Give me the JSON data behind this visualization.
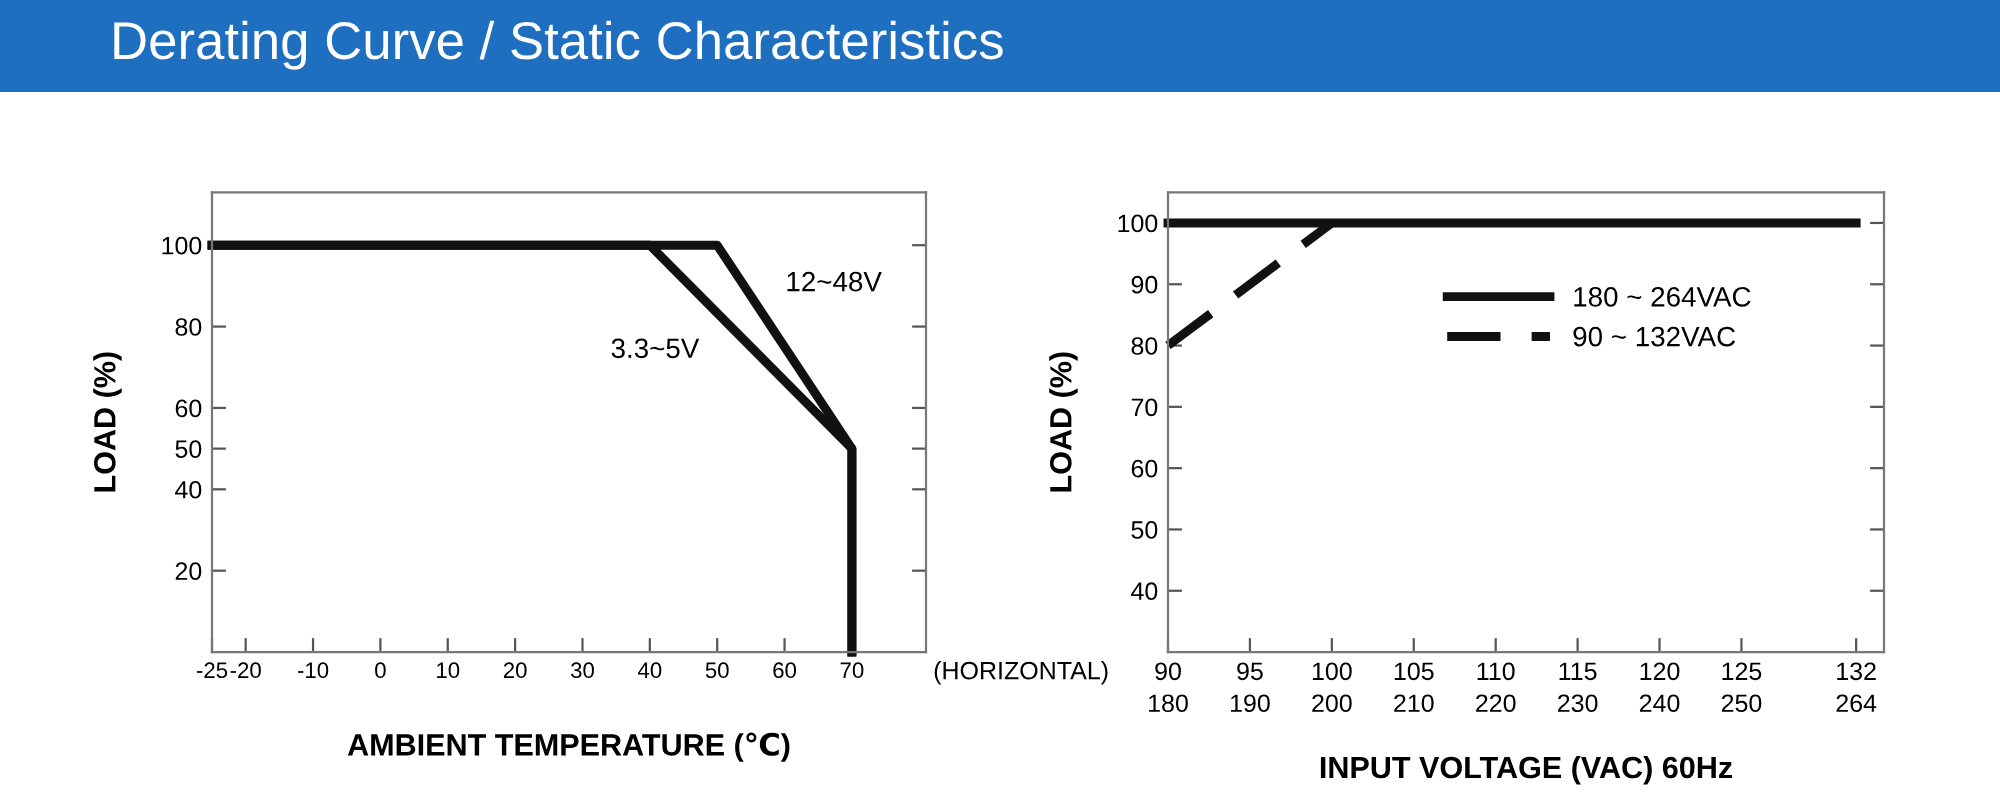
{
  "chart_data": [
    {
      "type": "line",
      "title": "Derating Curve / Static Characteristics",
      "xlabel": "AMBIENT TEMPERATURE (℃)",
      "ylabel": "LOAD (%)",
      "annotations": [
        "(HORIZONTAL)"
      ],
      "series": [
        {
          "name": "12~48V",
          "color": "#111111",
          "x": [
            -25,
            50,
            70,
            70
          ],
          "values": [
            100,
            100,
            50,
            0
          ]
        },
        {
          "name": "3.3~5V",
          "color": "#111111",
          "x": [
            -25,
            40,
            70,
            70
          ],
          "values": [
            100,
            100,
            50,
            0
          ]
        }
      ],
      "xlim": [
        -25,
        81
      ],
      "xticks": [
        -25,
        -20,
        -10,
        0,
        10,
        20,
        30,
        40,
        50,
        60,
        70
      ],
      "ylim": [
        0,
        113
      ],
      "yticks": [
        20,
        40,
        50,
        60,
        80,
        100
      ],
      "grid": false,
      "legend": false,
      "line_style": "solid",
      "marker": "none"
    },
    {
      "type": "line",
      "xlabel": "INPUT VOLTAGE (VAC) 60Hz",
      "ylabel": "LOAD (%)",
      "series": [
        {
          "name": "180 ~ 264VAC",
          "color": "#111111",
          "x": [
            90,
            132
          ],
          "values": [
            100,
            100
          ],
          "line_style": "solid"
        },
        {
          "name": "90 ~ 132VAC",
          "color": "#111111",
          "x": [
            90,
            100
          ],
          "values": [
            80,
            100
          ],
          "line_style": "dashed"
        }
      ],
      "xlim": [
        90,
        133.7
      ],
      "xticks": [
        90,
        95,
        100,
        105,
        110,
        115,
        120,
        125,
        132
      ],
      "x2lim": [
        180,
        267.4
      ],
      "x2ticks": [
        180,
        190,
        200,
        210,
        220,
        230,
        240,
        250,
        264
      ],
      "ylim": [
        30,
        105
      ],
      "yticks": [
        40,
        50,
        60,
        70,
        80,
        90,
        100
      ],
      "grid": false,
      "legend": "top right",
      "marker": "none"
    }
  ]
}
